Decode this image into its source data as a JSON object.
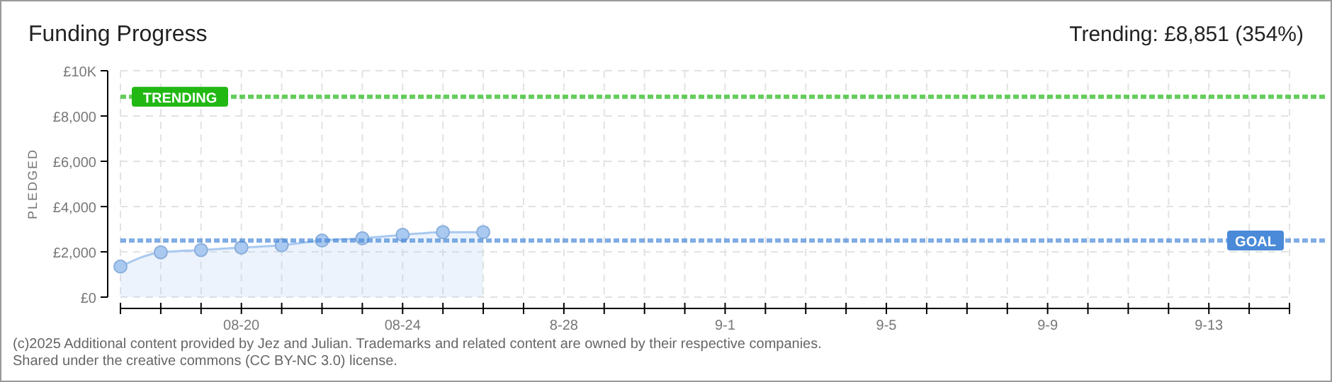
{
  "chart_data": {
    "type": "area",
    "title": "Funding Progress",
    "ylabel": "PLEDGED",
    "x": [
      "--08-17",
      "--08-18",
      "--08-19",
      "--08-20",
      "--08-21",
      "--08-22",
      "--08-23",
      "--08-24",
      "--08-25",
      "--08-26"
    ],
    "series": [
      {
        "color": "#a9c9f0",
        "values": [
          1350,
          1980,
          2080,
          2190,
          2290,
          2500,
          2600,
          2750,
          2870,
          2870
        ]
      }
    ],
    "marker": "circle",
    "grid": true,
    "xlim": [
      "--08-17",
      "--09-15"
    ],
    "xticks": [
      {
        "value": "--08-17",
        "label": null
      },
      {
        "value": "--08-18",
        "label": null
      },
      {
        "value": "--08-19",
        "label": null
      },
      {
        "value": "--08-20",
        "label": "08-20"
      },
      {
        "value": "--08-21",
        "label": null
      },
      {
        "value": "--08-22",
        "label": null
      },
      {
        "value": "--08-23",
        "label": null
      },
      {
        "value": "--08-24",
        "label": "08-24"
      },
      {
        "value": "--08-25",
        "label": null
      },
      {
        "value": "--08-26",
        "label": null
      },
      {
        "value": "--08-27",
        "label": null
      },
      {
        "value": "--08-28",
        "label": "8-28"
      },
      {
        "value": "--08-29",
        "label": null
      },
      {
        "value": "--08-30",
        "label": null
      },
      {
        "value": "--08-31",
        "label": null
      },
      {
        "value": "--09-01",
        "label": "9-1"
      },
      {
        "value": "--09-02",
        "label": null
      },
      {
        "value": "--09-03",
        "label": null
      },
      {
        "value": "--09-04",
        "label": null
      },
      {
        "value": "--09-05",
        "label": "9-5"
      },
      {
        "value": "--09-06",
        "label": null
      },
      {
        "value": "--09-07",
        "label": null
      },
      {
        "value": "--09-08",
        "label": null
      },
      {
        "value": "--09-09",
        "label": "9-9"
      },
      {
        "value": "--09-10",
        "label": null
      },
      {
        "value": "--09-11",
        "label": null
      },
      {
        "value": "--09-12",
        "label": null
      },
      {
        "value": "--09-13",
        "label": "9-13"
      },
      {
        "value": "--09-14",
        "label": null
      },
      {
        "value": "--09-15",
        "label": null
      }
    ],
    "ylim": [
      0,
      10000
    ],
    "yticks": [
      {
        "value": 0,
        "label": "£0"
      },
      {
        "value": 2000,
        "label": "£2,000"
      },
      {
        "value": 4000,
        "label": "£4,000"
      },
      {
        "value": 6000,
        "label": "£6,000"
      },
      {
        "value": 8000,
        "label": "£8,000"
      },
      {
        "value": 10000,
        "label": "£10K"
      }
    ],
    "ref_lines": [
      {
        "axis": "y",
        "value": 8851,
        "label": "TRENDING",
        "color": "#22b814",
        "line_style": "dotted"
      },
      {
        "axis": "y",
        "value": 2500,
        "label": "GOAL",
        "color": "#4a8ad8",
        "line_style": "dotted"
      }
    ],
    "annotations": [
      "Trending: £8,851 (354%)",
      "(c)2025 Additional content provided by Jez and Julian. Trademarks and related content are owned by their respective companies.",
      "Shared under the creative commons (CC BY-NC 3.0) license."
    ]
  }
}
